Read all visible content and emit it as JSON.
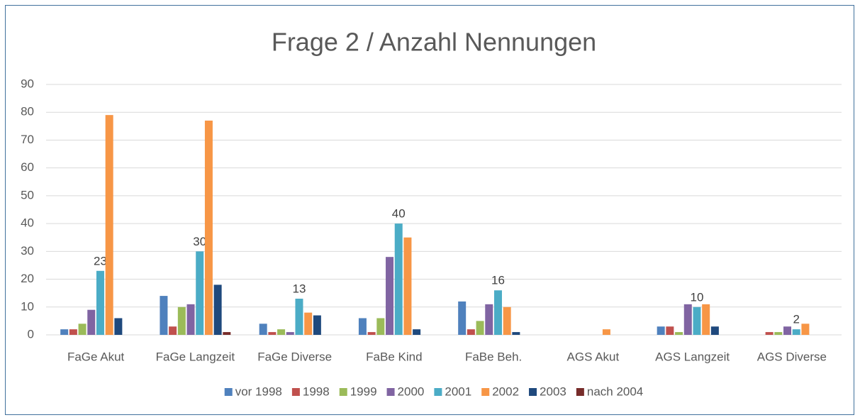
{
  "chart_data": {
    "type": "bar",
    "title": "Frage 2 / Anzahl Nennungen",
    "categories": [
      "FaGe Akut",
      "FaGe Langzeit",
      "FaGe Diverse",
      "FaBe Kind",
      "FaBe Beh.",
      "AGS Akut",
      "AGS Langzeit",
      "AGS Diverse"
    ],
    "series": [
      {
        "name": "vor 1998",
        "color": "#4f81bd",
        "values": [
          2,
          14,
          4,
          6,
          12,
          0,
          3,
          0
        ]
      },
      {
        "name": "1998",
        "color": "#c0504d",
        "values": [
          2,
          3,
          1,
          1,
          2,
          0,
          3,
          1
        ]
      },
      {
        "name": "1999",
        "color": "#9bbb59",
        "values": [
          4,
          10,
          2,
          6,
          5,
          0,
          1,
          1
        ]
      },
      {
        "name": "2000",
        "color": "#8064a2",
        "values": [
          9,
          11,
          1,
          28,
          11,
          0,
          11,
          3
        ]
      },
      {
        "name": "2001",
        "color": "#4bacc6",
        "values": [
          23,
          30,
          13,
          40,
          16,
          0,
          10,
          2
        ],
        "value_labels": [
          "23",
          "30",
          "13",
          "40",
          "16",
          null,
          "10",
          "2"
        ]
      },
      {
        "name": "2002",
        "color": "#f79646",
        "values": [
          79,
          77,
          8,
          35,
          10,
          2,
          11,
          4
        ]
      },
      {
        "name": "2003",
        "color": "#1f497d",
        "values": [
          6,
          18,
          7,
          2,
          1,
          0,
          3,
          0
        ]
      },
      {
        "name": "nach 2004",
        "color": "#772c2a",
        "values": [
          0,
          1,
          0,
          0,
          0,
          0,
          0,
          0
        ]
      }
    ],
    "ylim": [
      0,
      90
    ],
    "yticks": [
      0,
      10,
      20,
      30,
      40,
      50,
      60,
      70,
      80,
      90
    ],
    "grid": true,
    "legend": "bottom"
  }
}
